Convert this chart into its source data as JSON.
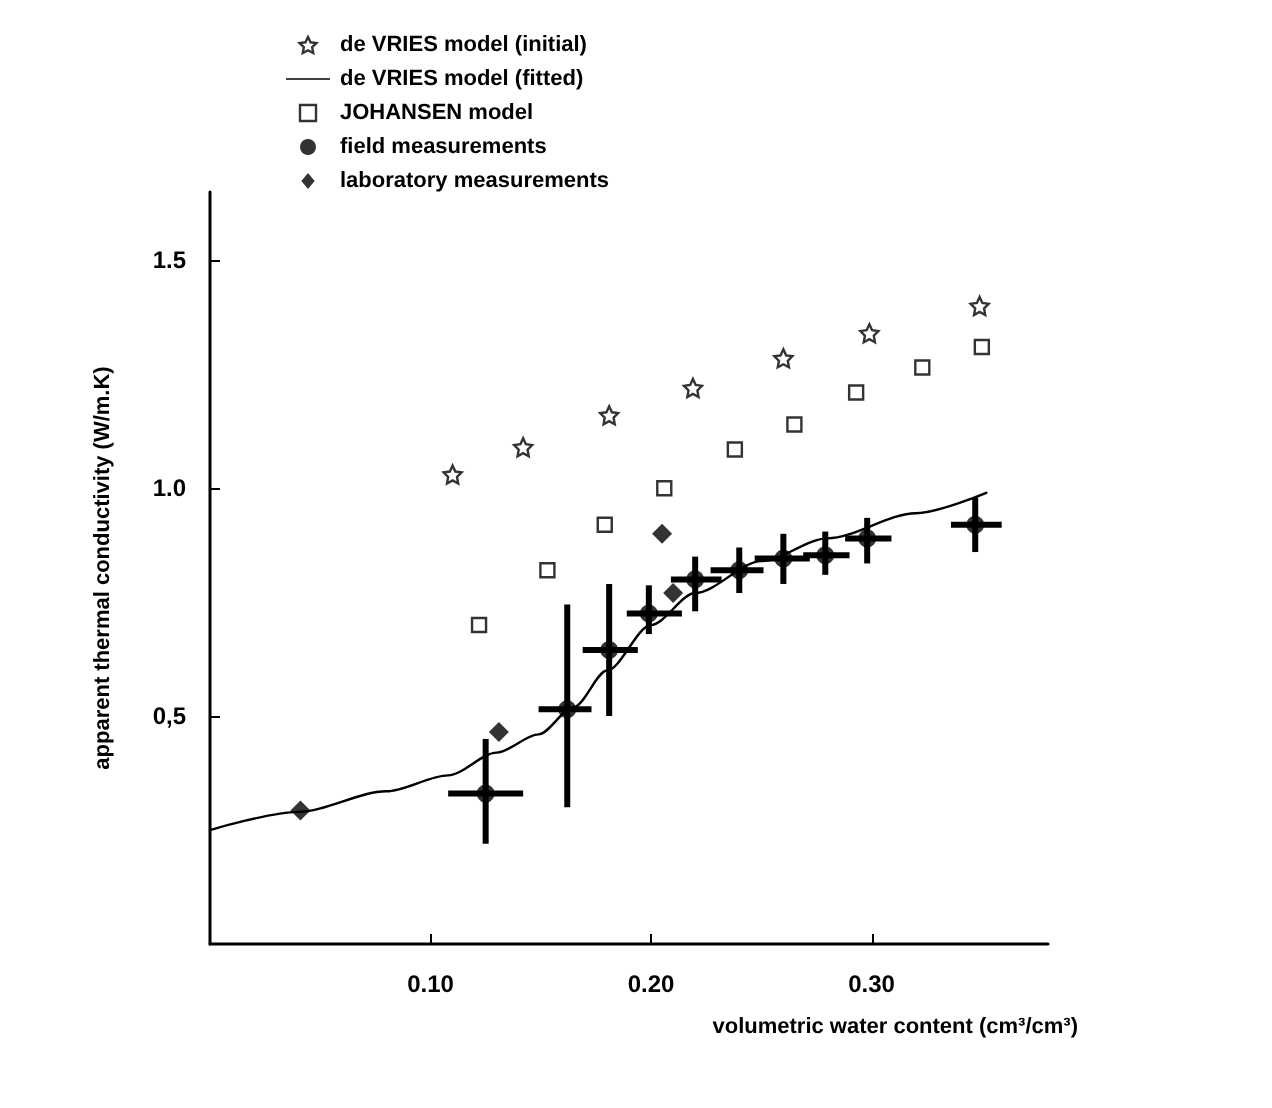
{
  "chart_data": {
    "type": "scatter",
    "xlabel": "volumetric water content (cm³/cm³)",
    "ylabel": "apparent thermal conductivity (W/m.K)",
    "xlim": [
      0,
      0.38
    ],
    "ylim": [
      0,
      1.65
    ],
    "xticks": [
      {
        "value": 0.1,
        "label": "0.10"
      },
      {
        "value": 0.2,
        "label": "0.20"
      },
      {
        "value": 0.3,
        "label": "0.30"
      }
    ],
    "yticks": [
      {
        "value": 0.5,
        "label": "0,5"
      },
      {
        "value": 1.0,
        "label": "1.0"
      },
      {
        "value": 1.5,
        "label": "1.5"
      }
    ],
    "grid": false,
    "legend": "top",
    "series": [
      {
        "name": "de VRIES model (initial)",
        "marker": "star",
        "color": "#000000",
        "x": [
          0.11,
          0.142,
          0.181,
          0.219,
          0.26,
          0.299,
          0.349
        ],
        "values": [
          1.03,
          1.09,
          1.16,
          1.22,
          1.285,
          1.34,
          1.4
        ]
      },
      {
        "name": "de VRIES model (fitted)",
        "type": "line",
        "marker": "none",
        "line_style": "solid",
        "color": "#000000",
        "x": [
          0,
          0.04,
          0.08,
          0.108,
          0.13,
          0.149,
          0.165,
          0.18,
          0.2,
          0.22,
          0.25,
          0.28,
          0.32,
          0.352
        ],
        "values": [
          0.25,
          0.29,
          0.335,
          0.37,
          0.42,
          0.46,
          0.52,
          0.6,
          0.7,
          0.77,
          0.84,
          0.89,
          0.945,
          0.99
        ]
      },
      {
        "name": "JOHANSEN model",
        "marker": "square",
        "color": "#000000",
        "x": [
          0.122,
          0.153,
          0.179,
          0.206,
          0.238,
          0.265,
          0.293,
          0.323,
          0.35
        ],
        "values": [
          0.7,
          0.82,
          0.92,
          1.0,
          1.085,
          1.14,
          1.21,
          1.265,
          1.31
        ]
      },
      {
        "name": "field measurements",
        "marker": "circle",
        "color": "#000000",
        "x": [
          0.125,
          0.162,
          0.181,
          0.199,
          0.22,
          0.24,
          0.26,
          0.279,
          0.298,
          0.347
        ],
        "values": [
          0.33,
          0.515,
          0.645,
          0.725,
          0.8,
          0.82,
          0.846,
          0.853,
          0.89,
          0.92
        ],
        "errors": [
          [
            0.22,
            0.45
          ],
          [
            0.3,
            0.745
          ],
          [
            0.5,
            0.79
          ],
          [
            0.68,
            0.787
          ],
          [
            0.73,
            0.85
          ],
          [
            0.77,
            0.87
          ],
          [
            0.79,
            0.9
          ],
          [
            0.81,
            0.905
          ],
          [
            0.835,
            0.935
          ],
          [
            0.86,
            0.98
          ]
        ],
        "xerrors": [
          [
            0.108,
            0.142
          ],
          [
            0.149,
            0.173
          ],
          [
            0.169,
            0.194
          ],
          [
            0.189,
            0.214
          ],
          [
            0.209,
            0.232
          ],
          [
            0.227,
            0.251
          ],
          [
            0.247,
            0.272
          ],
          [
            0.269,
            0.29
          ],
          [
            0.288,
            0.309
          ],
          [
            0.336,
            0.359
          ]
        ]
      },
      {
        "name": "laboratory measurements",
        "marker": "diamond",
        "color": "#000000",
        "x": [
          0.041,
          0.131,
          0.205,
          0.21
        ],
        "values": [
          0.293,
          0.465,
          0.9,
          0.77
        ]
      }
    ]
  }
}
